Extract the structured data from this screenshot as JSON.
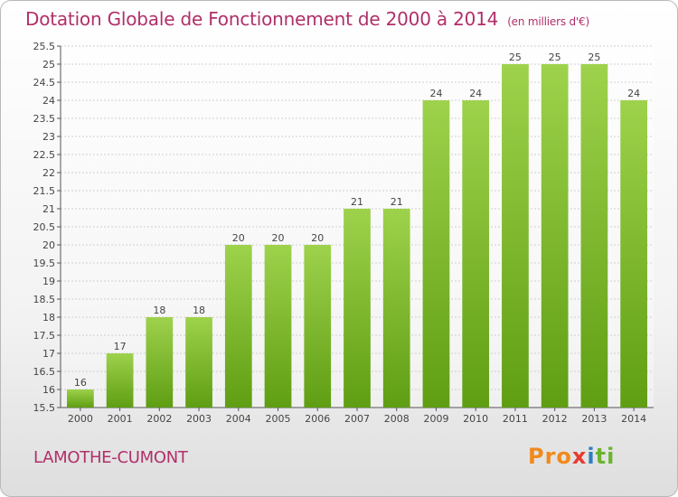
{
  "header": {
    "title": "Dotation Globale de Fonctionnement de 2000 à 2014",
    "subtitle": "(en milliers d'€)"
  },
  "footer": {
    "commune": "LAMOTHE-CUMONT",
    "brand": {
      "part1": "Pro",
      "part2": "x",
      "part3": "i",
      "part4": "ti"
    }
  },
  "colors": {
    "title": "#b0306a",
    "bar_top": "#9ed24c",
    "bar_bottom": "#5f9e13"
  },
  "chart_data": {
    "type": "bar",
    "categories": [
      "2000",
      "2001",
      "2002",
      "2003",
      "2004",
      "2005",
      "2006",
      "2007",
      "2008",
      "2009",
      "2010",
      "2011",
      "2012",
      "2013",
      "2014"
    ],
    "values": [
      16,
      17,
      18,
      18,
      20,
      20,
      20,
      21,
      21,
      24,
      24,
      25,
      25,
      25,
      24
    ],
    "ylim": [
      15.5,
      25.5
    ],
    "yticks": [
      "15.5",
      "16",
      "16.5",
      "17",
      "17.5",
      "18",
      "18.5",
      "19",
      "19.5",
      "20",
      "20.5",
      "21",
      "21.5",
      "22",
      "22.5",
      "23",
      "23.5",
      "24",
      "24.5",
      "25",
      "25.5"
    ],
    "grid": true,
    "title": "Dotation Globale de Fonctionnement de 2000 à 2014",
    "subtitle": "(en milliers d'€)"
  }
}
